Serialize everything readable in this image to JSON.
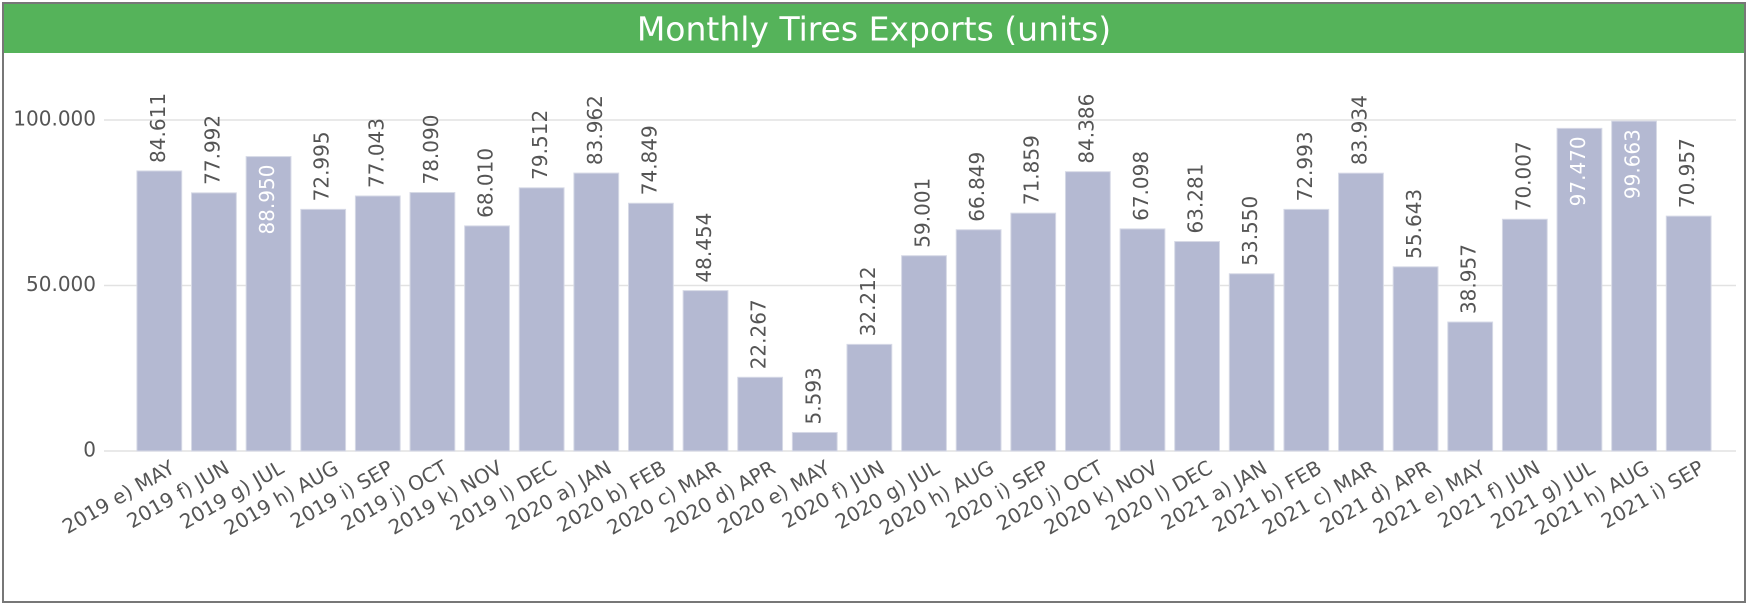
{
  "chart_data": {
    "type": "bar",
    "title": "Monthly Tires Exports (units)",
    "categories": [
      "2019 e) MAY",
      "2019 f) JUN",
      "2019 g) JUL",
      "2019 h) AUG",
      "2019 i) SEP",
      "2019 j) OCT",
      "2019 k) NOV",
      "2019 l) DEC",
      "2020 a) JAN",
      "2020 b) FEB",
      "2020 c) MAR",
      "2020 d) APR",
      "2020 e) MAY",
      "2020 f) JUN",
      "2020 g) JUL",
      "2020 h) AUG",
      "2020 i) SEP",
      "2020 j) OCT",
      "2020 k) NOV",
      "2020 l) DEC",
      "2021 a) JAN",
      "2021 b) FEB",
      "2021 c) MAR",
      "2021 d) APR",
      "2021 e) MAY",
      "2021 f) JUN",
      "2021 g) JUL",
      "2021 h) AUG",
      "2021 i) SEP"
    ],
    "values": [
      84611,
      77992,
      88950,
      72995,
      77043,
      78090,
      68010,
      79512,
      83962,
      74849,
      48454,
      22267,
      5593,
      32212,
      59001,
      66849,
      71859,
      84386,
      67098,
      63281,
      53550,
      72993,
      83934,
      55643,
      38957,
      70007,
      97470,
      99663,
      70957
    ],
    "value_labels": [
      "84.611",
      "77.992",
      "88.950",
      "72.995",
      "77.043",
      "78.090",
      "68.010",
      "79.512",
      "83.962",
      "74.849",
      "48.454",
      "22.267",
      "5.593",
      "32.212",
      "59.001",
      "66.849",
      "71.859",
      "84.386",
      "67.098",
      "63.281",
      "53.550",
      "72.993",
      "83.934",
      "55.643",
      "38.957",
      "70.007",
      "97.470",
      "99.663",
      "70.957"
    ],
    "color": "#b4b9d2",
    "ylim": [
      0,
      100000
    ],
    "yticks": [
      0,
      {
        "value": 50000,
        "label": "50.000"
      },
      {
        "value": 100000,
        "label": "100.000"
      }
    ],
    "grid": true
  }
}
